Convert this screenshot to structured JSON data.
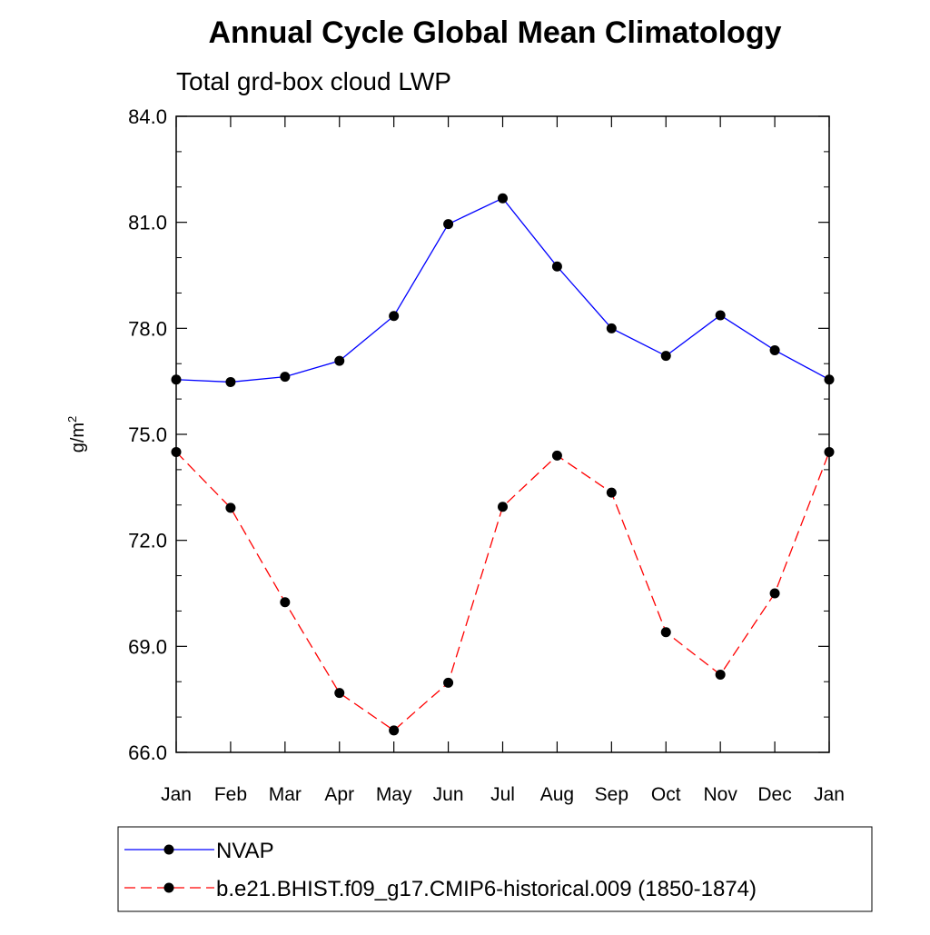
{
  "chart_data": {
    "type": "line",
    "title": "Annual Cycle Global Mean Climatology",
    "subtitle": "Total grd-box cloud LWP",
    "ylabel": "g/m",
    "ylabel_superscript": "2",
    "xlabel": "",
    "categories": [
      "Jan",
      "Feb",
      "Mar",
      "Apr",
      "May",
      "Jun",
      "Jul",
      "Aug",
      "Sep",
      "Oct",
      "Nov",
      "Dec",
      "Jan"
    ],
    "ylim": [
      66.0,
      84.0
    ],
    "yticks": [
      66.0,
      69.0,
      72.0,
      75.0,
      78.0,
      81.0,
      84.0
    ],
    "ytick_labels": [
      "66.0",
      "69.0",
      "72.0",
      "75.0",
      "78.0",
      "81.0",
      "84.0"
    ],
    "grid": false,
    "legend_position": "bottom",
    "series": [
      {
        "name": "NVAP",
        "color": "#0000ff",
        "line_style": "solid",
        "marker": "filled-circle",
        "values": [
          76.55,
          76.48,
          76.63,
          77.08,
          78.35,
          80.95,
          81.68,
          79.75,
          78.0,
          77.22,
          78.37,
          77.38,
          76.55
        ]
      },
      {
        "name": "b.e21.BHIST.f09_g17.CMIP6-historical.009 (1850-1874)",
        "color": "#ff0000",
        "line_style": "dashed",
        "marker": "filled-circle",
        "values": [
          74.5,
          72.92,
          70.25,
          67.68,
          66.62,
          67.97,
          72.95,
          74.4,
          73.35,
          69.4,
          68.2,
          70.5,
          74.5
        ]
      }
    ]
  }
}
